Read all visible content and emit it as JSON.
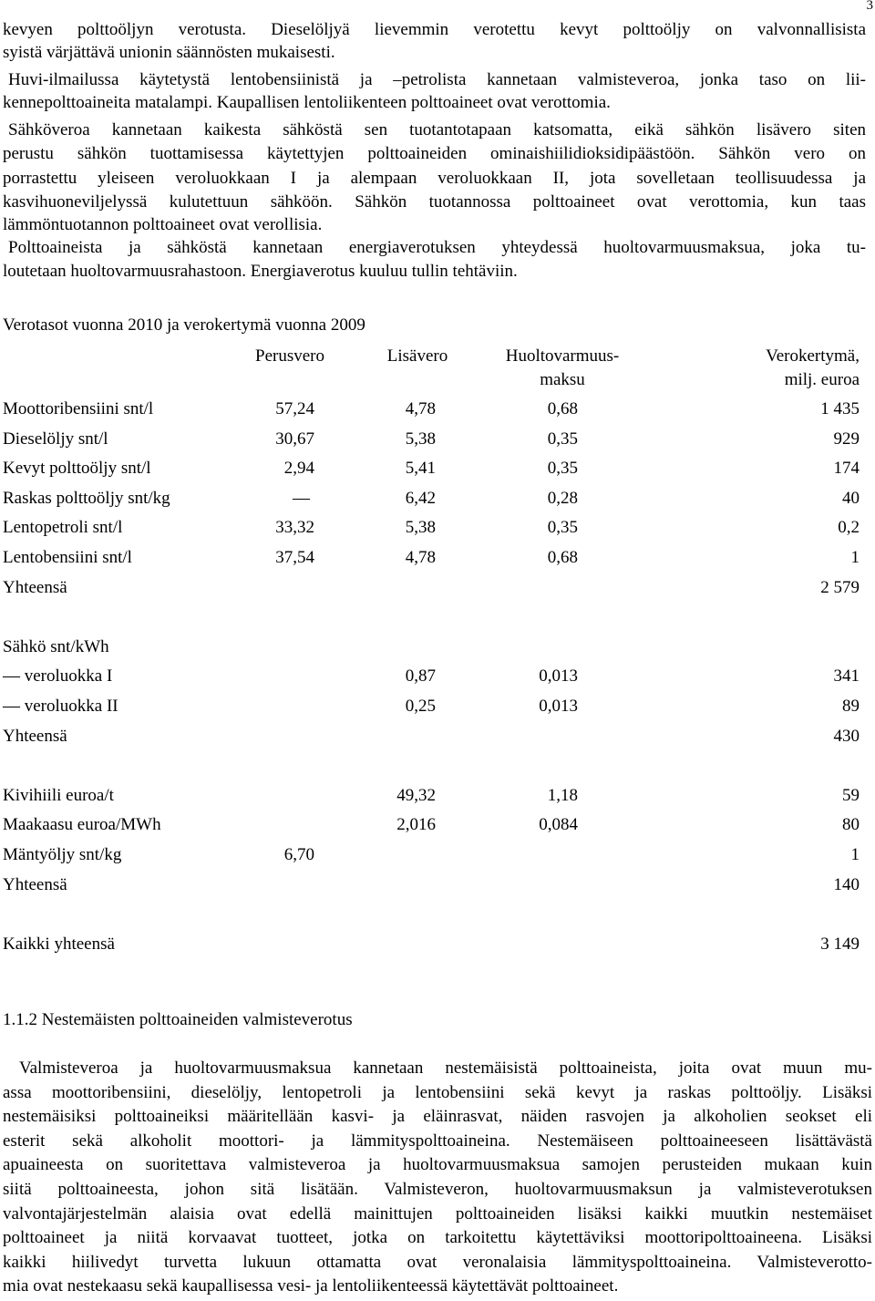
{
  "page_number": "3",
  "intro_paragraphs": [
    {
      "lines": [
        "kevyen polttoöljyn verotusta. Dieselöljyä lievemmin verotettu kevyt polttoöljy on valvonnallisista",
        "syistä värjättävä unionin säännösten mukaisesti."
      ]
    },
    {
      "lines": [
        "Huvi-ilmailussa käytetystä lentobensiinistä ja –petrolista kannetaan valmisteveroa, jonka taso on lii-",
        "kennepolttoaineita matalampi. Kaupallisen lentoliikenteen polttoaineet ovat verottomia."
      ]
    },
    {
      "lines": [
        "Sähköveroa kannetaan kaikesta sähköstä sen tuotantotapaan katsomatta, eikä sähkön lisävero siten",
        "perustu sähkön tuottamisessa käytettyjen polttoaineiden ominaishiilidioksidipäästöön. Sähkön vero on",
        "porrastettu yleiseen veroluokkaan I ja alempaan veroluokkaan II, jota sovelletaan teollisuudessa ja",
        "kasvihuoneviljelyssä kulutettuun sähköön. Sähkön tuotannossa polttoaineet ovat verottomia, kun taas",
        "lämmöntuotannon polttoaineet ovat verollisia."
      ]
    },
    {
      "lines": [
        "Polttoaineista ja sähköstä kannetaan energiaverotuksen yhteydessä huoltovarmuusmaksua, joka tu-",
        "loutetaan huoltovarmuusrahastoon. Energiaverotus kuuluu tullin tehtäviin."
      ]
    }
  ],
  "table": {
    "title": "Verotasot vuonna 2010 ja verokertymä vuonna 2009",
    "columns": [
      [
        "Perusvero"
      ],
      [
        "Lisävero"
      ],
      [
        "Huoltovarmuus-",
        "maksu"
      ],
      [
        "Verokertymä,",
        "milj. euroa"
      ]
    ],
    "groups": [
      {
        "rows": [
          {
            "label": "Moottoribensiini snt/l",
            "cells": [
              "57,24",
              "4,78",
              "0,68",
              "1 435"
            ]
          },
          {
            "label": "Dieselöljy snt/l",
            "cells": [
              "30,67",
              "5,38",
              "0,35",
              "929"
            ]
          },
          {
            "label": "Kevyt polttoöljy snt/l",
            "cells": [
              "2,94",
              "5,41",
              "0,35",
              "174"
            ]
          },
          {
            "label": "Raskas polttoöljy snt/kg",
            "cells": [
              "—",
              "6,42",
              "0,28",
              "40"
            ]
          },
          {
            "label": "Lentopetroli snt/l",
            "cells": [
              "33,32",
              "5,38",
              "0,35",
              "0,2"
            ]
          },
          {
            "label": "Lentobensiini snt/l",
            "cells": [
              "37,54",
              "4,78",
              "0,68",
              "1"
            ]
          },
          {
            "label": "Yhteensä",
            "cells": [
              null,
              null,
              null,
              "2 579"
            ]
          }
        ]
      },
      {
        "heading": "Sähkö snt/kWh",
        "rows": [
          {
            "label": "— veroluokka I",
            "cells": [
              null,
              "0,87",
              "0,013",
              "341"
            ]
          },
          {
            "label": "— veroluokka II",
            "cells": [
              null,
              "0,25",
              "0,013",
              "89"
            ]
          },
          {
            "label": "Yhteensä",
            "cells": [
              null,
              null,
              null,
              "430"
            ]
          }
        ]
      },
      {
        "rows": [
          {
            "label": "Kivihiili euroa/t",
            "cells": [
              null,
              "49,32",
              "1,18",
              "59"
            ]
          },
          {
            "label": "Maakaasu euroa/MWh",
            "cells": [
              null,
              "2,016",
              "0,084",
              "80"
            ]
          },
          {
            "label": "Mäntyöljy snt/kg",
            "cells": [
              "6,70",
              null,
              null,
              "1"
            ]
          },
          {
            "label": "Yhteensä",
            "cells": [
              null,
              null,
              null,
              "140"
            ]
          }
        ]
      },
      {
        "rows": [
          {
            "label": "Kaikki yhteensä",
            "cells": [
              null,
              null,
              null,
              "3 149"
            ]
          }
        ]
      }
    ]
  },
  "section_heading": "1.1.2 Nestemäisten polttoaineiden valmisteverotus",
  "body_paragraph": {
    "lines": [
      "Valmisteveroa ja huoltovarmuusmaksua kannetaan nestemäisistä polttoaineista, joita ovat muun mu-",
      "assa moottoribensiini, dieselöljy, lentopetroli ja lentobensiini sekä kevyt ja raskas polttoöljy. Lisäksi",
      "nestemäisiksi polttoaineiksi määritellään kasvi- ja eläinrasvat, näiden rasvojen ja alkoholien seokset eli",
      "esterit sekä alkoholit moottori- ja lämmityspolttoaineina. Nestemäiseen polttoaineeseen lisättävästä",
      "apuaineesta on suoritettava valmisteveroa ja huoltovarmuusmaksua samojen perusteiden mukaan kuin",
      "siitä polttoaineesta, johon sitä lisätään. Valmisteveron, huoltovarmuusmaksun ja valmisteverotuksen",
      "valvontajärjestelmän alaisia ovat edellä mainittujen polttoaineiden lisäksi kaikki muutkin nestemäiset",
      "polttoaineet ja niitä korvaavat tuotteet, jotka on tarkoitettu käytettäviksi moottoripolttoaineena. Lisäksi",
      "kaikki hiilivedyt turvetta lukuun ottamatta ovat veronalaisia lämmityspolttoaineina. Valmisteverotto-",
      "mia ovat nestekaasu sekä kaupallisessa vesi- ja lentoliikenteessä käytettävät polttoaineet."
    ]
  }
}
